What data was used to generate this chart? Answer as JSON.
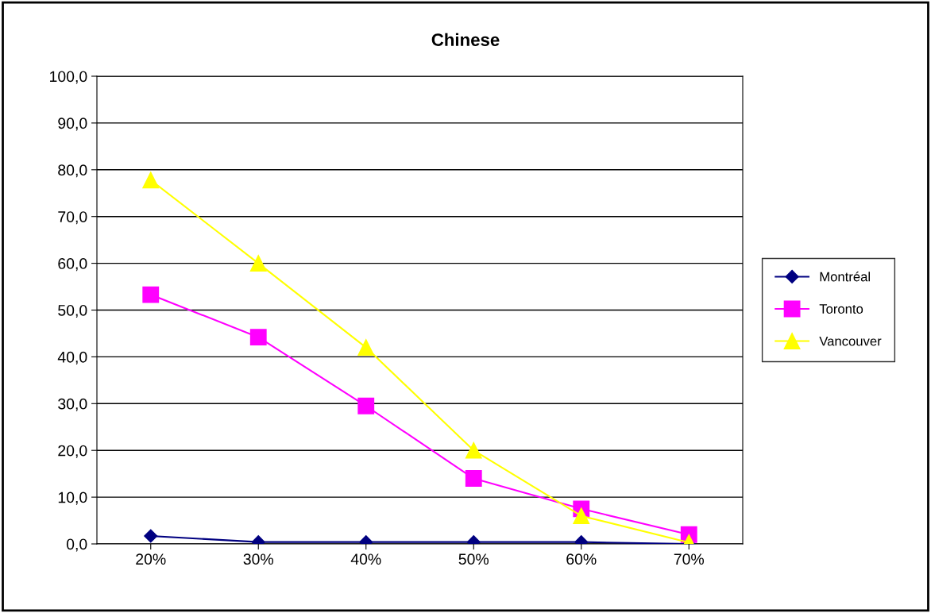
{
  "chart_data": {
    "type": "line",
    "title": "Chinese",
    "categories": [
      "20%",
      "30%",
      "40%",
      "50%",
      "60%",
      "70%"
    ],
    "series": [
      {
        "name": "Montréal",
        "color": "#000080",
        "marker": "diamond",
        "values": [
          1.7,
          0.4,
          0.4,
          0.4,
          0.4,
          0.0
        ]
      },
      {
        "name": "Toronto",
        "color": "#ff00ff",
        "marker": "square",
        "values": [
          53.3,
          44.2,
          29.5,
          14.0,
          7.5,
          2.0
        ]
      },
      {
        "name": "Vancouver",
        "color": "#ffff00",
        "marker": "triangle",
        "values": [
          77.8,
          60.0,
          42.0,
          20.0,
          6.0,
          0.3
        ]
      }
    ],
    "ylim": [
      0,
      100
    ],
    "yticks": [
      {
        "value": 0,
        "label": "0,0"
      },
      {
        "value": 10,
        "label": "10,0"
      },
      {
        "value": 20,
        "label": "20,0"
      },
      {
        "value": 30,
        "label": "30,0"
      },
      {
        "value": 40,
        "label": "40,0"
      },
      {
        "value": 50,
        "label": "50,0"
      },
      {
        "value": 60,
        "label": "60,0"
      },
      {
        "value": 70,
        "label": "70,0"
      },
      {
        "value": 80,
        "label": "80,0"
      },
      {
        "value": 90,
        "label": "90,0"
      },
      {
        "value": 100,
        "label": "100,0"
      }
    ],
    "grid": "y",
    "legend": "right",
    "line_style": "solid"
  }
}
